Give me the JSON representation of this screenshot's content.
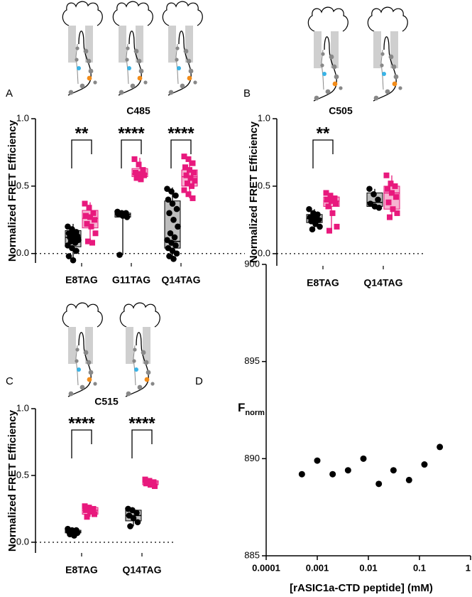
{
  "chart_data": [
    {
      "type": "box",
      "panel": "A",
      "title": "C485",
      "ylabel": "Normalized FRET Efficiency",
      "categories": [
        "E8TAG",
        "G11TAG",
        "Q14TAG"
      ],
      "significance": [
        "**",
        "****",
        "****"
      ],
      "ylim": [
        -0.07,
        1.0
      ],
      "yticks": [
        {
          "value": 0,
          "label": "0.0"
        },
        0.5,
        {
          "value": 1,
          "label": "1.0"
        }
      ],
      "series": [
        {
          "color": "#000000",
          "box_color": "#bdbdbd",
          "boxes": [
            {
              "min": -0.05,
              "q1": 0.05,
              "median": 0.12,
              "q3": 0.17,
              "max": 0.22,
              "points": [
                0.2,
                0.18,
                0.16,
                0.15,
                0.14,
                0.13,
                0.12,
                0.11,
                0.1,
                0.09,
                0.08,
                0.06,
                0.04,
                0.02,
                -0.02,
                -0.05
              ]
            },
            {
              "min": -0.01,
              "q1": 0.27,
              "median": 0.29,
              "q3": 0.3,
              "max": 0.31,
              "points": [
                0.31,
                0.3,
                0.3,
                0.29,
                0.28,
                0.27,
                -0.01
              ]
            },
            {
              "min": -0.04,
              "q1": 0.04,
              "median": 0.09,
              "q3": 0.39,
              "max": 0.49,
              "points": [
                0.48,
                0.46,
                0.43,
                0.4,
                0.37,
                0.33,
                0.3,
                0.25,
                0.2,
                0.15,
                0.12,
                0.1,
                0.08,
                0.06,
                0.04,
                0.02,
                0,
                -0.02,
                -0.04
              ]
            }
          ]
        },
        {
          "color": "#e8197d",
          "box_color": "#f6b3d1",
          "boxes": [
            {
              "min": 0.07,
              "q1": 0.19,
              "median": 0.26,
              "q3": 0.32,
              "max": 0.38,
              "points": [
                0.37,
                0.34,
                0.3,
                0.28,
                0.27,
                0.25,
                0.22,
                0.2,
                0.15,
                0.09,
                0.08
              ]
            },
            {
              "min": 0.54,
              "q1": 0.57,
              "median": 0.59,
              "q3": 0.63,
              "max": 0.71,
              "points": [
                0.7,
                0.66,
                0.62,
                0.6,
                0.59,
                0.58,
                0.56,
                0.55
              ]
            },
            {
              "min": 0.41,
              "q1": 0.5,
              "median": 0.57,
              "q3": 0.62,
              "max": 0.72,
              "points": [
                0.72,
                0.7,
                0.67,
                0.64,
                0.62,
                0.6,
                0.58,
                0.56,
                0.54,
                0.52,
                0.5,
                0.47,
                0.44,
                0.41
              ]
            }
          ]
        }
      ]
    },
    {
      "type": "box",
      "panel": "B",
      "title": "C505",
      "ylabel": "Normalized FRET Efficiency",
      "categories": [
        "E8TAG",
        "Q14TAG"
      ],
      "significance": [
        "**",
        null
      ],
      "ylim": [
        -0.09,
        1.0
      ],
      "yticks": [
        {
          "value": 0,
          "label": "0.0"
        },
        0.5,
        {
          "value": 1,
          "label": "1.0"
        }
      ],
      "series": [
        {
          "color": "#000000",
          "box_color": "#bdbdbd",
          "boxes": [
            {
              "min": 0.18,
              "q1": 0.23,
              "median": 0.26,
              "q3": 0.29,
              "max": 0.33,
              "points": [
                0.33,
                0.3,
                0.29,
                0.27,
                0.26,
                0.25,
                0.24,
                0.22,
                0.2,
                0.18
              ]
            },
            {
              "min": 0.33,
              "q1": 0.35,
              "median": 0.38,
              "q3": 0.45,
              "max": 0.48,
              "points": [
                0.48,
                0.44,
                0.4,
                0.37,
                0.35,
                0.34
              ]
            }
          ]
        },
        {
          "color": "#e8197d",
          "box_color": "#f6b3d1",
          "boxes": [
            {
              "min": 0.17,
              "q1": 0.35,
              "median": 0.39,
              "q3": 0.42,
              "max": 0.45,
              "points": [
                0.45,
                0.43,
                0.41,
                0.4,
                0.39,
                0.37,
                0.35,
                0.3,
                0.2,
                0.17
              ]
            },
            {
              "min": 0.27,
              "q1": 0.33,
              "median": 0.45,
              "q3": 0.5,
              "max": 0.58,
              "points": [
                0.58,
                0.52,
                0.5,
                0.48,
                0.45,
                0.42,
                0.38,
                0.33,
                0.3,
                0.27
              ]
            }
          ]
        }
      ]
    },
    {
      "type": "box",
      "panel": "C",
      "title": "C515",
      "ylabel": "Normalized FRET Efficiency",
      "categories": [
        "E8TAG",
        "Q14TAG"
      ],
      "significance": [
        "****",
        "****"
      ],
      "ylim": [
        -0.08,
        1.0
      ],
      "yticks": [
        {
          "value": 0,
          "label": "0.0"
        },
        0.5,
        {
          "value": 1,
          "label": "1.0"
        }
      ],
      "series": [
        {
          "color": "#000000",
          "box_color": "#bdbdbd",
          "boxes": [
            {
              "min": 0.05,
              "q1": 0.07,
              "median": 0.08,
              "q3": 0.09,
              "max": 0.1,
              "points": [
                0.1,
                0.09,
                0.09,
                0.08,
                0.08,
                0.07,
                0.06,
                0.05
              ]
            },
            {
              "min": 0.12,
              "q1": 0.16,
              "median": 0.2,
              "q3": 0.24,
              "max": 0.25,
              "points": [
                0.25,
                0.24,
                0.22,
                0.2,
                0.18,
                0.15,
                0.12
              ]
            }
          ]
        },
        {
          "color": "#e8197d",
          "box_color": "#f6b3d1",
          "boxes": [
            {
              "min": 0.19,
              "q1": 0.21,
              "median": 0.24,
              "q3": 0.26,
              "max": 0.27,
              "points": [
                0.27,
                0.26,
                0.25,
                0.24,
                0.23,
                0.21,
                0.19
              ]
            },
            {
              "min": 0.42,
              "q1": 0.43,
              "median": 0.45,
              "q3": 0.46,
              "max": 0.47,
              "points": [
                0.47,
                0.46,
                0.45,
                0.44,
                0.43,
                0.42
              ]
            }
          ]
        }
      ]
    },
    {
      "type": "scatter",
      "panel": "D",
      "ylabel": {
        "main": "F",
        "sub": "norm"
      },
      "xlabel": "[rASIC1a-CTD peptide] (mM)",
      "xscale": "log",
      "color": "#000000",
      "x": [
        0.0005,
        0.001,
        0.002,
        0.004,
        0.008,
        0.016,
        0.031,
        0.0625,
        0.125,
        0.25
      ],
      "values": [
        889.2,
        889.9,
        889.2,
        889.4,
        890.0,
        888.7,
        889.4,
        888.9,
        889.7,
        890.6
      ],
      "xlim": [
        0.0001,
        1
      ],
      "xticks": [
        0.0001,
        0.001,
        0.01,
        0.1,
        1
      ],
      "ylim": [
        885,
        900
      ],
      "yticks": [
        885,
        890,
        895,
        900
      ]
    }
  ]
}
